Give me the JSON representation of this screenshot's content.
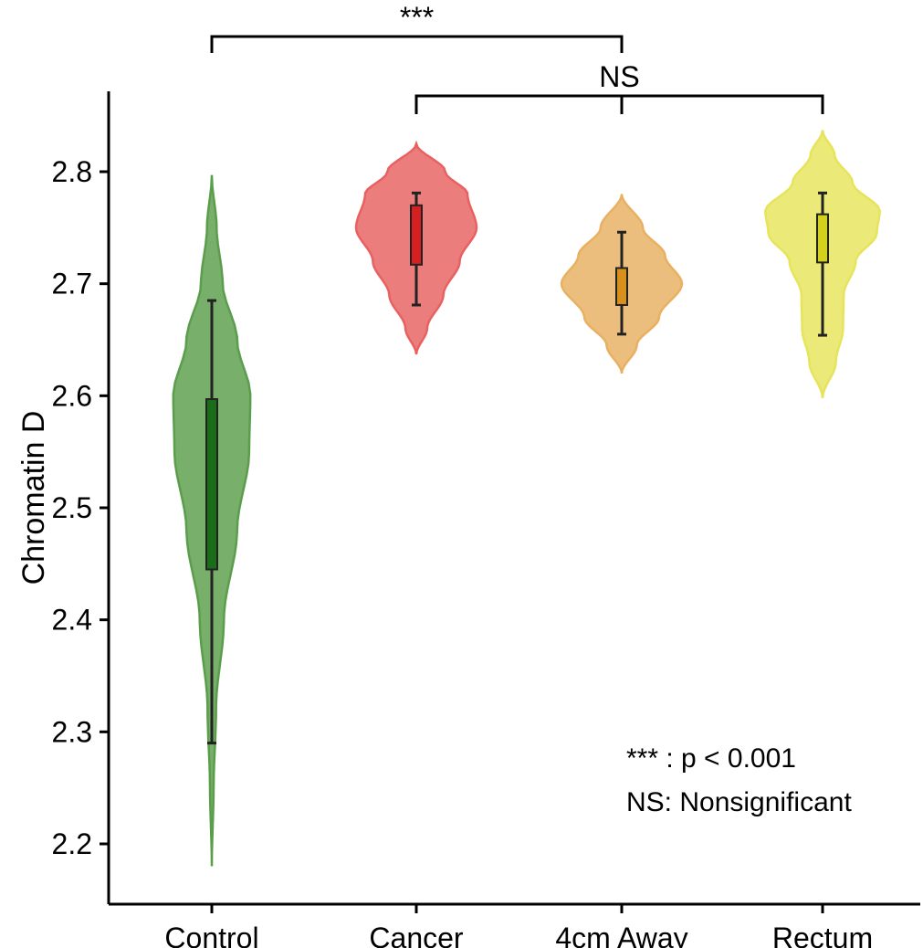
{
  "chart_data": {
    "type": "violin",
    "ylabel": "Chromatin D",
    "xlabel": "",
    "ylim": [
      2.15,
      2.87
    ],
    "yticks": [
      "2.2",
      "2.3",
      "2.4",
      "2.5",
      "2.6",
      "2.7",
      "2.8"
    ],
    "grid": false,
    "categories": [
      "Control",
      "Cancer",
      "4cm Away",
      "Rectum"
    ],
    "groups": [
      {
        "name": "Control",
        "color": "#5a9e4b",
        "box_color": "#1a6e1a",
        "min": 2.29,
        "q1": 2.445,
        "q3": 2.597,
        "max": 2.685,
        "violin_range": [
          2.178,
          2.797
        ],
        "density": [
          [
            2.18,
            0.0
          ],
          [
            2.25,
            0.03
          ],
          [
            2.32,
            0.07
          ],
          [
            2.4,
            0.2
          ],
          [
            2.48,
            0.42
          ],
          [
            2.55,
            0.62
          ],
          [
            2.6,
            0.64
          ],
          [
            2.65,
            0.42
          ],
          [
            2.7,
            0.18
          ],
          [
            2.75,
            0.08
          ],
          [
            2.797,
            0.0
          ]
        ]
      },
      {
        "name": "Cancer",
        "color": "#e86060",
        "box_color": "#d42020",
        "min": 2.681,
        "q1": 2.717,
        "q3": 2.77,
        "max": 2.781,
        "violin_range": [
          2.637,
          2.825
        ],
        "density": [
          [
            2.637,
            0.0
          ],
          [
            2.66,
            0.18
          ],
          [
            2.69,
            0.45
          ],
          [
            2.72,
            0.72
          ],
          [
            2.75,
            1.0
          ],
          [
            2.78,
            0.85
          ],
          [
            2.8,
            0.48
          ],
          [
            2.825,
            0.0
          ]
        ]
      },
      {
        "name": "4cm Away",
        "color": "#e8b060",
        "box_color": "#d8901c",
        "min": 2.655,
        "q1": 2.681,
        "q3": 2.714,
        "max": 2.746,
        "violin_range": [
          2.62,
          2.78
        ],
        "density": [
          [
            2.62,
            0.0
          ],
          [
            2.645,
            0.25
          ],
          [
            2.67,
            0.62
          ],
          [
            2.7,
            1.0
          ],
          [
            2.725,
            0.72
          ],
          [
            2.75,
            0.35
          ],
          [
            2.78,
            0.0
          ]
        ]
      },
      {
        "name": "Rectum",
        "color": "#e6e45a",
        "box_color": "#d2d21c",
        "min": 2.654,
        "q1": 2.719,
        "q3": 2.762,
        "max": 2.781,
        "violin_range": [
          2.598,
          2.837
        ],
        "density": [
          [
            2.598,
            0.0
          ],
          [
            2.63,
            0.22
          ],
          [
            2.66,
            0.34
          ],
          [
            2.69,
            0.35
          ],
          [
            2.72,
            0.55
          ],
          [
            2.745,
            0.9
          ],
          [
            2.765,
            0.95
          ],
          [
            2.79,
            0.5
          ],
          [
            2.815,
            0.2
          ],
          [
            2.837,
            0.0
          ]
        ]
      }
    ],
    "annotations": [
      {
        "label": "***",
        "from": "Control",
        "to": "4cm Away",
        "level": 1
      },
      {
        "label": "NS",
        "from": "Cancer",
        "to": "Rectum",
        "level": 2,
        "center_drop": "4cm Away"
      }
    ],
    "legend": {
      "line1": "*** : p < 0.001",
      "line2": "NS: Nonsignificant",
      "placement": "bottom-right"
    }
  }
}
